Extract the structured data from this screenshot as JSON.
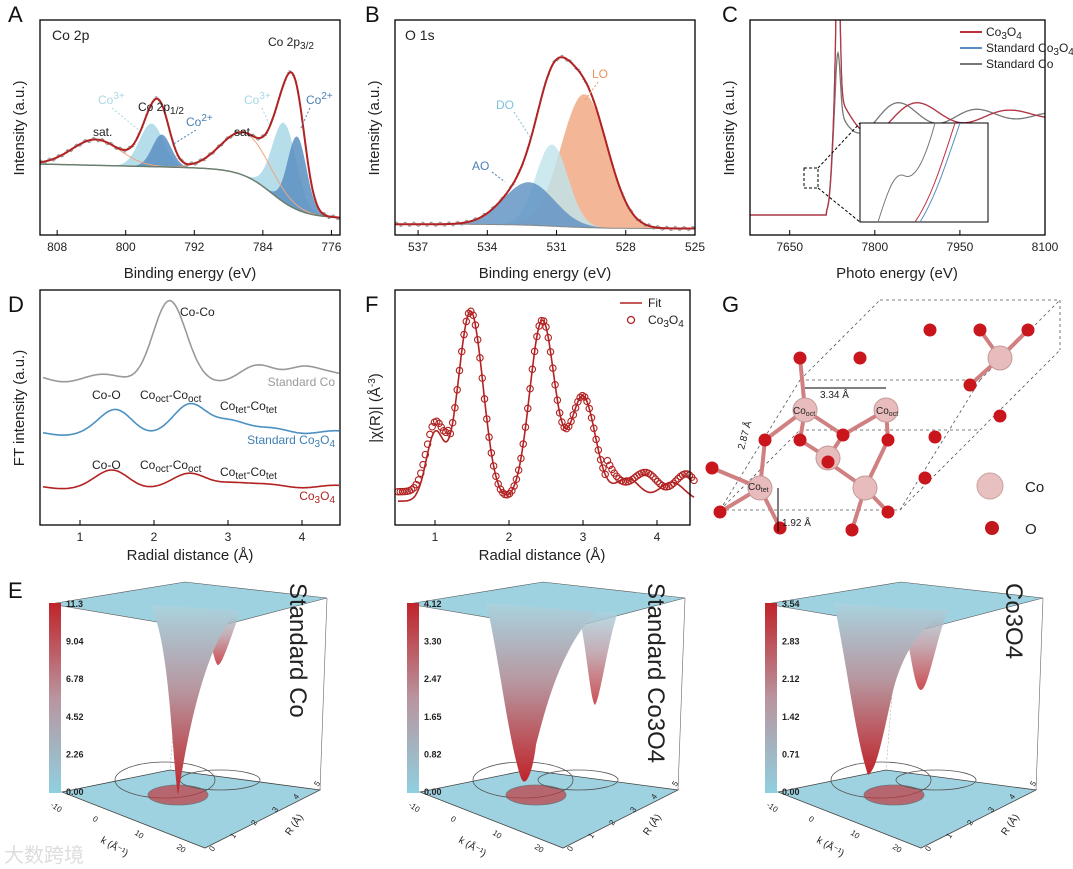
{
  "colors": {
    "red": "#b22222",
    "light_blue": "#a9d8e6",
    "mid_blue": "#5b8fc2",
    "orange": "#f0a57e",
    "gray": "#888888",
    "steel": "#4a90c2",
    "plane": "#9fd2e0"
  },
  "chart_data": [
    {
      "panel": "A",
      "type": "line",
      "title": "Co 2p",
      "xlabel": "Binding energy (eV)",
      "ylabel": "Intensity (a.u.)",
      "xlim": [
        810,
        775
      ],
      "xticks": [
        "808",
        "800",
        "792",
        "784",
        "776"
      ],
      "components": [
        {
          "name": "Co3+ 2p3/2",
          "center": 781.5,
          "amplitude": 0.37,
          "width": 1.4
        },
        {
          "name": "Co2+ 2p3/2",
          "center": 780.0,
          "amplitude": 0.34,
          "width": 1.1
        },
        {
          "name": "sat. 2p3/2",
          "center": 786.0,
          "amplitude": 0.2,
          "width": 2.8
        },
        {
          "name": "Co3+ 2p1/2",
          "center": 797.0,
          "amplitude": 0.2,
          "width": 1.4
        },
        {
          "name": "Co2+ 2p1/2",
          "center": 795.8,
          "amplitude": 0.15,
          "width": 1.1
        },
        {
          "name": "sat. 2p1/2",
          "center": 803.5,
          "amplitude": 0.12,
          "width": 2.8
        }
      ],
      "annotations": {
        "co3": "Co",
        "co3_sup": "3+",
        "co2": "Co",
        "co2_sup": "2+",
        "sat": "sat.",
        "p12": "Co 2p",
        "p12_sub": "1/2",
        "p32": "Co 2p",
        "p32_sub": "3/2"
      }
    },
    {
      "panel": "B",
      "type": "line",
      "title": "O 1s",
      "xlabel": "Binding energy (eV)",
      "ylabel": "Intensity (a.u.)",
      "xlim": [
        538,
        525
      ],
      "xticks": [
        "537",
        "534",
        "531",
        "528",
        "525"
      ],
      "components": [
        {
          "name": "LO",
          "center": 529.8,
          "amplitude": 0.62,
          "width": 1.0
        },
        {
          "name": "DO",
          "center": 531.2,
          "amplitude": 0.38,
          "width": 0.7
        },
        {
          "name": "AO",
          "center": 532.2,
          "amplitude": 0.2,
          "width": 1.1
        }
      ]
    },
    {
      "panel": "C",
      "type": "line",
      "xlabel": "Photo energy (eV)",
      "ylabel": "Intensity (a.u.)",
      "xlim": [
        7580,
        8100
      ],
      "xticks": [
        "7650",
        "7800",
        "7950",
        "8100"
      ],
      "legend": [
        "Co3O4",
        "Standard Co3O4",
        "Standard Co"
      ],
      "legend_position": "top-right",
      "legend_parts": [
        {
          "main": "Co",
          "s1": "3",
          "mid": "O",
          "s2": "4",
          "pre": ""
        },
        {
          "pre": "Standard ",
          "main": "Co",
          "s1": "3",
          "mid": "O",
          "s2": "4"
        },
        {
          "pre": "Standard Co",
          "main": "",
          "s1": "",
          "mid": "",
          "s2": ""
        }
      ],
      "edge_energy": 7715
    },
    {
      "panel": "D",
      "type": "line",
      "xlabel": "Radial distance (Å)",
      "ylabel": "FT intensity (a.u.)",
      "xlim": [
        0.5,
        4.5
      ],
      "xticks": [
        "1",
        "2",
        "3",
        "4"
      ],
      "series": [
        {
          "name": "Standard Co",
          "peaks": [
            [
              2.2,
              1.0
            ],
            [
              3.4,
              0.12
            ],
            [
              4.0,
              0.2
            ]
          ]
        },
        {
          "name": "Standard Co3O4",
          "peaks": [
            [
              1.5,
              0.5
            ],
            [
              2.5,
              0.6
            ],
            [
              3.0,
              0.3
            ],
            [
              3.7,
              0.1
            ]
          ]
        },
        {
          "name": "Co3O4",
          "peaks": [
            [
              1.45,
              0.45
            ],
            [
              2.5,
              0.35
            ],
            [
              3.0,
              0.15
            ],
            [
              3.7,
              0.06
            ]
          ]
        }
      ],
      "annotations": {
        "coco": "Co-Co",
        "coo": "Co-O",
        "octoct": "Co",
        "oct_sub": "oct",
        "tettet": "Co",
        "tet_sub": "tet",
        "dash": "-",
        "std_co": "Standard Co",
        "std_co3o4_pre": "Standard Co",
        "co3o4": "Co",
        "s3": "3",
        "o": "O",
        "s4": "4"
      }
    },
    {
      "panel": "F",
      "type": "scatter",
      "xlabel": "Radial distance (Å)",
      "ylabel": "|χ(R)| (Å",
      "ylabel_sup": "-3",
      "ylabel_end": ")",
      "xlim": [
        0.5,
        4.5
      ],
      "xticks": [
        "1",
        "2",
        "3",
        "4"
      ],
      "legend": [
        "Fit",
        "Co3O4"
      ],
      "legend_position": "top-right",
      "peaks": [
        [
          1.0,
          0.35
        ],
        [
          1.48,
          1.0
        ],
        [
          2.45,
          0.95
        ],
        [
          3.0,
          0.55
        ],
        [
          3.6,
          0.12
        ],
        [
          4.2,
          0.1
        ]
      ]
    },
    {
      "panel": "E",
      "type": "surface",
      "plots": [
        {
          "title": "Standard Co",
          "title_parts": [
            "Standard Co",
            "",
            "",
            ""
          ],
          "colorbar": [
            "11.3",
            "9.04",
            "6.78",
            "4.52",
            "2.26",
            "0.00"
          ],
          "max": 11.3
        },
        {
          "title": "Standard Co3O4",
          "title_parts": [
            "Standard Co",
            "3",
            "O",
            "4"
          ],
          "colorbar": [
            "4.12",
            "3.30",
            "2.47",
            "1.65",
            "0.82",
            "0.00"
          ],
          "max": 4.12
        },
        {
          "title": "Co3O4",
          "title_parts": [
            "Co",
            "3",
            "O",
            "4"
          ],
          "colorbar": [
            "3.54",
            "2.83",
            "2.12",
            "1.42",
            "0.71",
            "0.00"
          ],
          "max": 3.54
        }
      ],
      "k_axis": "k (Å⁻¹)",
      "r_axis": "R (Å)",
      "k_ticks": [
        "-10",
        "0",
        "10",
        "20"
      ],
      "r_ticks": [
        "0",
        "1",
        "2",
        "3",
        "4",
        "5"
      ]
    }
  ],
  "structure": {
    "panel": "G",
    "d1": "3.34 Å",
    "d2": "2.87 Å",
    "d3": "1.92 Å",
    "co_oct": "Co",
    "oct_sub": "oct",
    "co_tet": "Co",
    "tet_sub": "tet",
    "legend_co": "Co",
    "legend_o": "O"
  },
  "panel_letters": [
    "A",
    "B",
    "C",
    "D",
    "F",
    "G",
    "E"
  ],
  "watermark": "大数跨境"
}
